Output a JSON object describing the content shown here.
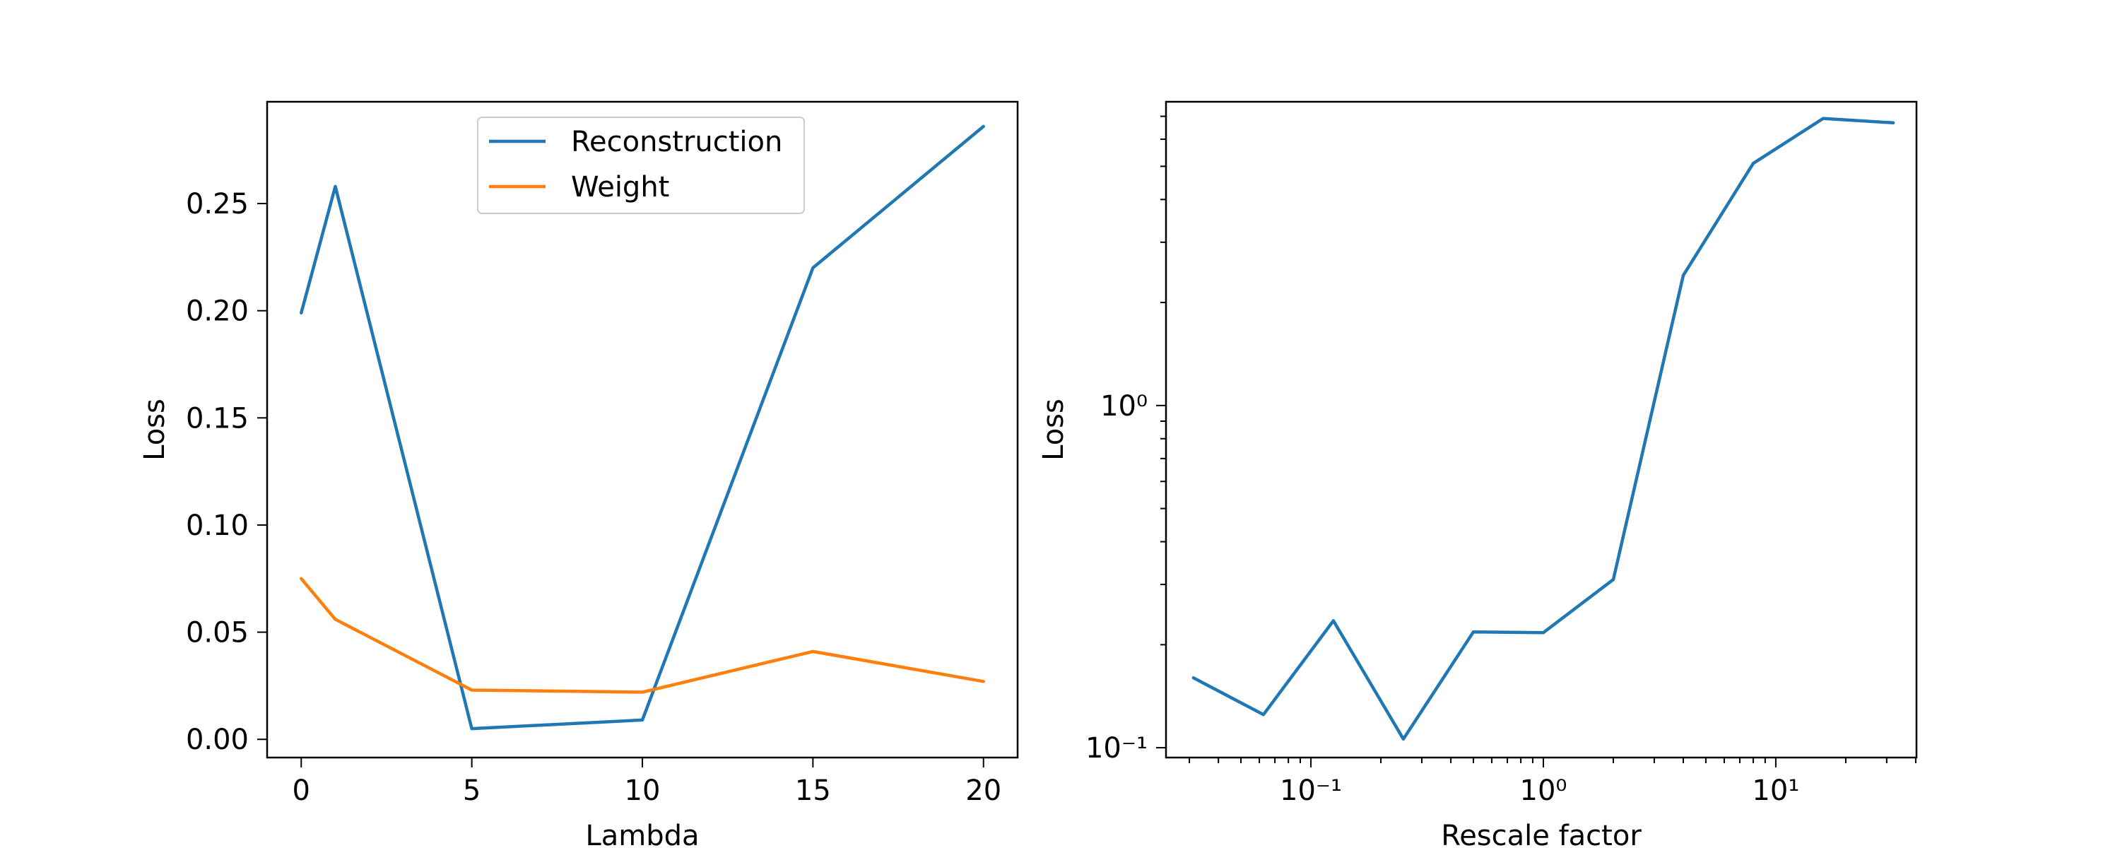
{
  "chart_data": [
    {
      "type": "line",
      "xlabel": "Lambda",
      "ylabel": "Loss",
      "xlim": [
        -1,
        21
      ],
      "ylim": [
        -0.0085,
        0.2975
      ],
      "xticks": [
        0,
        5,
        10,
        15,
        20
      ],
      "yticks": [
        0.0,
        0.05,
        0.1,
        0.15,
        0.2,
        0.25
      ],
      "xtick_labels": [
        "0",
        "5",
        "10",
        "15",
        "20"
      ],
      "ytick_labels": [
        "0.00",
        "0.05",
        "0.10",
        "0.15",
        "0.20",
        "0.25"
      ],
      "legend_position": "upper-center",
      "grid": false,
      "x": [
        0,
        1,
        5,
        10,
        15,
        20
      ],
      "series": [
        {
          "name": "Reconstruction",
          "color": "#1f77b4",
          "values": [
            0.199,
            0.258,
            0.005,
            0.009,
            0.22,
            0.286
          ]
        },
        {
          "name": "Weight",
          "color": "#ff7f0e",
          "values": [
            0.075,
            0.056,
            0.023,
            0.022,
            0.041,
            0.027
          ]
        }
      ]
    },
    {
      "type": "line",
      "xlabel": "Rescale factor",
      "ylabel": "Loss",
      "xscale": "log",
      "yscale": "log",
      "xlim": [
        0.0238,
        40.3
      ],
      "ylim": [
        0.0936,
        7.72
      ],
      "xticks": [
        0.1,
        1,
        10
      ],
      "yticks": [
        0.1,
        1
      ],
      "xtick_labels": [
        "10⁻¹",
        "10⁰",
        "10¹"
      ],
      "ytick_labels": [
        "10⁻¹",
        "10⁰"
      ],
      "grid": false,
      "x": [
        0.03125,
        0.0625,
        0.125,
        0.25,
        0.5,
        1,
        2,
        4,
        8,
        16,
        32
      ],
      "series": [
        {
          "color": "#1f77b4",
          "values": [
            0.16,
            0.125,
            0.235,
            0.106,
            0.218,
            0.217,
            0.31,
            2.4,
            5.1,
            6.9,
            6.7
          ]
        }
      ]
    }
  ]
}
